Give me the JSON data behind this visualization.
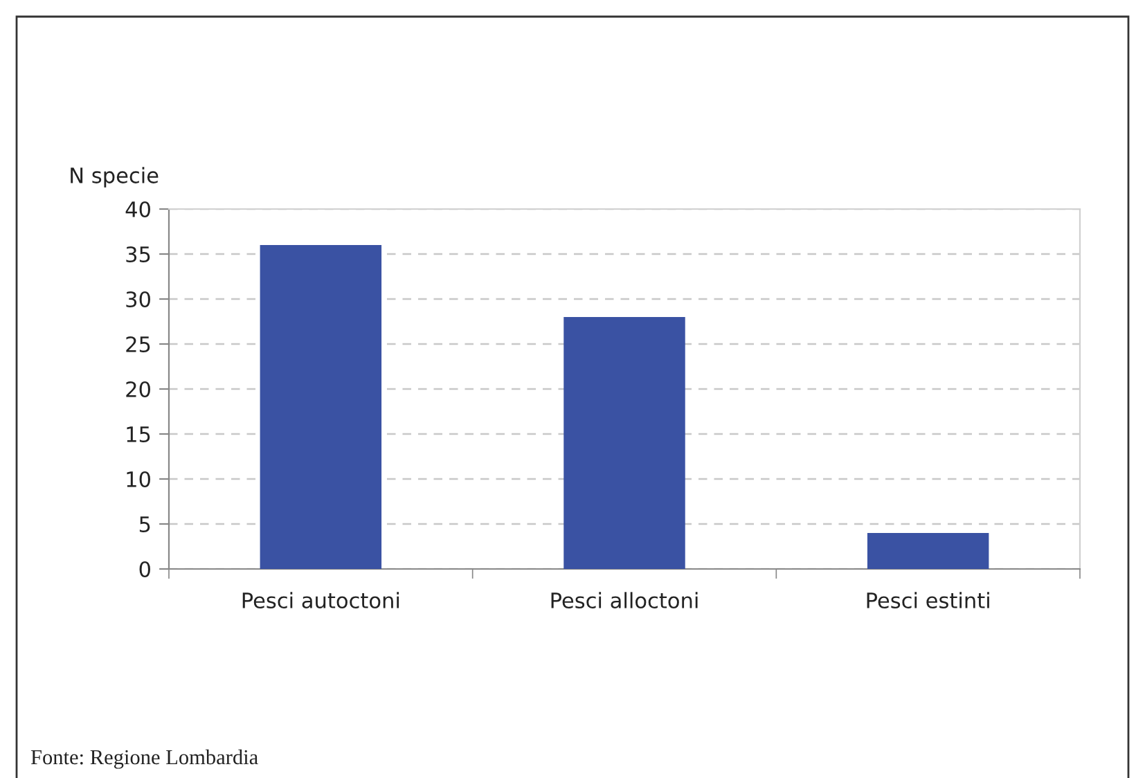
{
  "chart_data": {
    "type": "bar",
    "ylabel": "N specie",
    "categories": [
      "Pesci autoctoni",
      "Pesci alloctoni",
      "Pesci estinti"
    ],
    "values": [
      36,
      28,
      4
    ],
    "color": "#3a52a3",
    "ylim": [
      0,
      40
    ],
    "yticks": [
      0,
      5,
      10,
      15,
      20,
      25,
      30,
      35,
      40
    ],
    "grid": "y",
    "annotations": [
      "Fonte: Regione Lombardia"
    ]
  }
}
